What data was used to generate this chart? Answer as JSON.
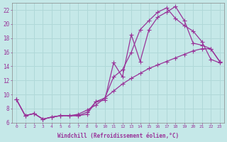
{
  "xlabel": "Windchill (Refroidissement éolien,°C)",
  "ylabel": "",
  "background_color": "#c5e8e8",
  "line_color": "#993399",
  "grid_color": "#b0d8d8",
  "xlim": [
    -0.5,
    23.5
  ],
  "ylim": [
    6,
    23
  ],
  "xticks": [
    0,
    1,
    2,
    3,
    4,
    5,
    6,
    7,
    8,
    9,
    10,
    11,
    12,
    13,
    14,
    15,
    16,
    17,
    18,
    19,
    20,
    21,
    22,
    23
  ],
  "yticks": [
    6,
    8,
    10,
    12,
    14,
    16,
    18,
    20,
    22
  ],
  "series1_x": [
    0,
    1,
    2,
    3,
    4,
    5,
    6,
    7,
    8,
    9,
    10,
    11,
    12,
    13,
    14,
    15,
    16,
    17,
    18,
    19,
    20,
    21,
    22,
    23
  ],
  "series1_y": [
    9.3,
    7.0,
    7.3,
    6.5,
    6.8,
    7.0,
    7.0,
    7.0,
    7.2,
    9.0,
    9.2,
    14.5,
    12.5,
    18.5,
    14.7,
    19.2,
    21.0,
    21.7,
    22.5,
    20.5,
    17.3,
    17.0,
    16.5,
    14.7
  ],
  "series2_x": [
    0,
    1,
    2,
    3,
    4,
    5,
    6,
    7,
    8,
    9,
    10,
    11,
    12,
    13,
    14,
    15,
    16,
    17,
    18,
    19,
    20,
    21,
    22,
    23
  ],
  "series2_y": [
    9.3,
    7.0,
    7.3,
    6.5,
    6.8,
    7.0,
    7.0,
    7.0,
    7.5,
    9.0,
    9.5,
    12.5,
    13.5,
    16.0,
    19.2,
    20.5,
    21.7,
    22.3,
    20.8,
    19.8,
    19.0,
    17.5,
    15.0,
    14.5
  ],
  "series3_x": [
    0,
    1,
    2,
    3,
    4,
    5,
    6,
    7,
    8,
    9,
    10,
    11,
    12,
    13,
    14,
    15,
    16,
    17,
    18,
    19,
    20,
    21,
    22,
    23
  ],
  "series3_y": [
    9.3,
    7.0,
    7.3,
    6.5,
    6.8,
    7.0,
    7.0,
    7.2,
    7.8,
    8.5,
    9.5,
    10.5,
    11.5,
    12.3,
    13.0,
    13.7,
    14.2,
    14.7,
    15.2,
    15.7,
    16.2,
    16.5,
    16.5,
    14.7
  ]
}
